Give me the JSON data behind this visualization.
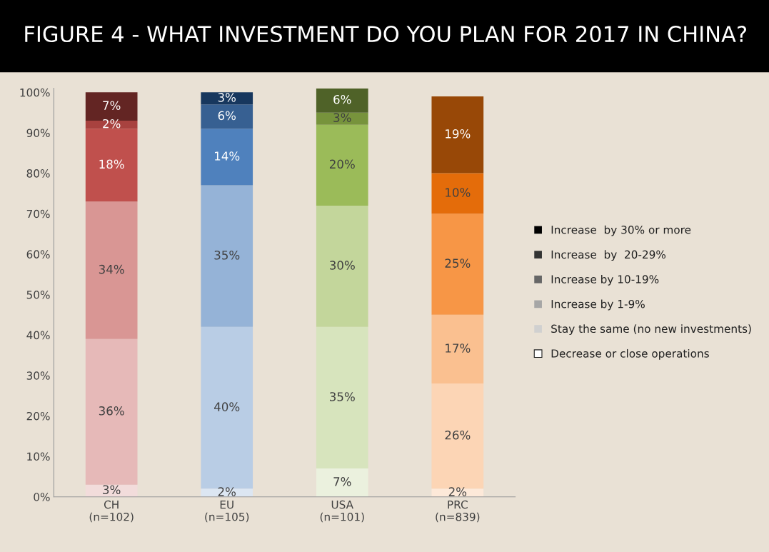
{
  "chart_data": {
    "type": "bar",
    "stacked": true,
    "title": "FIGURE 4 - WHAT INVESTMENT DO YOU PLAN FOR 2017 IN CHINA?",
    "categories": [
      "CH\n(n=102)",
      "EU\n(n=105)",
      "USA\n(n=101)",
      "PRC\n(n=839)"
    ],
    "ylim": [
      0,
      101
    ],
    "yticks": [
      {
        "value": 0,
        "label": "0%"
      },
      {
        "value": 10,
        "label": "10%"
      },
      {
        "value": 20,
        "label": "20%"
      },
      {
        "value": 30,
        "label": "30%"
      },
      {
        "value": 40,
        "label": "40%"
      },
      {
        "value": 50,
        "label": "50%"
      },
      {
        "value": 60,
        "label": "60%"
      },
      {
        "value": 70,
        "label": "70%"
      },
      {
        "value": 80,
        "label": "80%"
      },
      {
        "value": 90,
        "label": "90%"
      },
      {
        "value": 100,
        "label": "100%"
      }
    ],
    "grid": false,
    "legend": "right",
    "series": [
      {
        "name": "Decrease or close operations",
        "color": "#ffffff",
        "values": [
          3,
          2,
          7,
          2
        ],
        "value_labels": [
          "3%",
          "2%",
          "7%",
          "2%"
        ],
        "colors": [
          "#f2dcdb",
          "#dce6f2",
          "#ebf1de",
          "#fde9d9"
        ]
      },
      {
        "name": "Stay the same (no new investments)",
        "color": "#d0d0d0",
        "values": [
          36,
          40,
          35,
          26
        ],
        "value_labels": [
          "36%",
          "40%",
          "35%",
          "26%"
        ],
        "colors": [
          "#e6b9b8",
          "#b9cde5",
          "#d7e4bd",
          "#fcd5b5"
        ]
      },
      {
        "name": "Increase by 1-9%",
        "color": "#a6a6a6",
        "values": [
          34,
          35,
          30,
          17
        ],
        "value_labels": [
          "34%",
          "35%",
          "30%",
          "17%"
        ],
        "colors": [
          "#d99694",
          "#95b3d7",
          "#c3d69b",
          "#fac090"
        ]
      },
      {
        "name": "Increase by 10-19%",
        "color": "#666666",
        "values": [
          18,
          14,
          20,
          25
        ],
        "value_labels": [
          "18%",
          "14%",
          "20%",
          "25%"
        ],
        "colors": [
          "#c0504d",
          "#4f81bd",
          "#9bbb59",
          "#f79646"
        ]
      },
      {
        "name": "Increase  by  20-29%",
        "color": "#333333",
        "values": [
          2,
          6,
          3,
          10
        ],
        "value_labels": [
          "2%",
          "6%",
          "3%",
          "10%"
        ],
        "colors": [
          "#a8423f",
          "#376092",
          "#77933c",
          "#e46c0a"
        ]
      },
      {
        "name": "Increase  by 30% or more",
        "color": "#000000",
        "values": [
          7,
          3,
          6,
          19
        ],
        "value_labels": [
          "7%",
          "3%",
          "6%",
          "19%"
        ],
        "colors": [
          "#632523",
          "#17375e",
          "#4f6228",
          "#984807"
        ]
      }
    ]
  }
}
